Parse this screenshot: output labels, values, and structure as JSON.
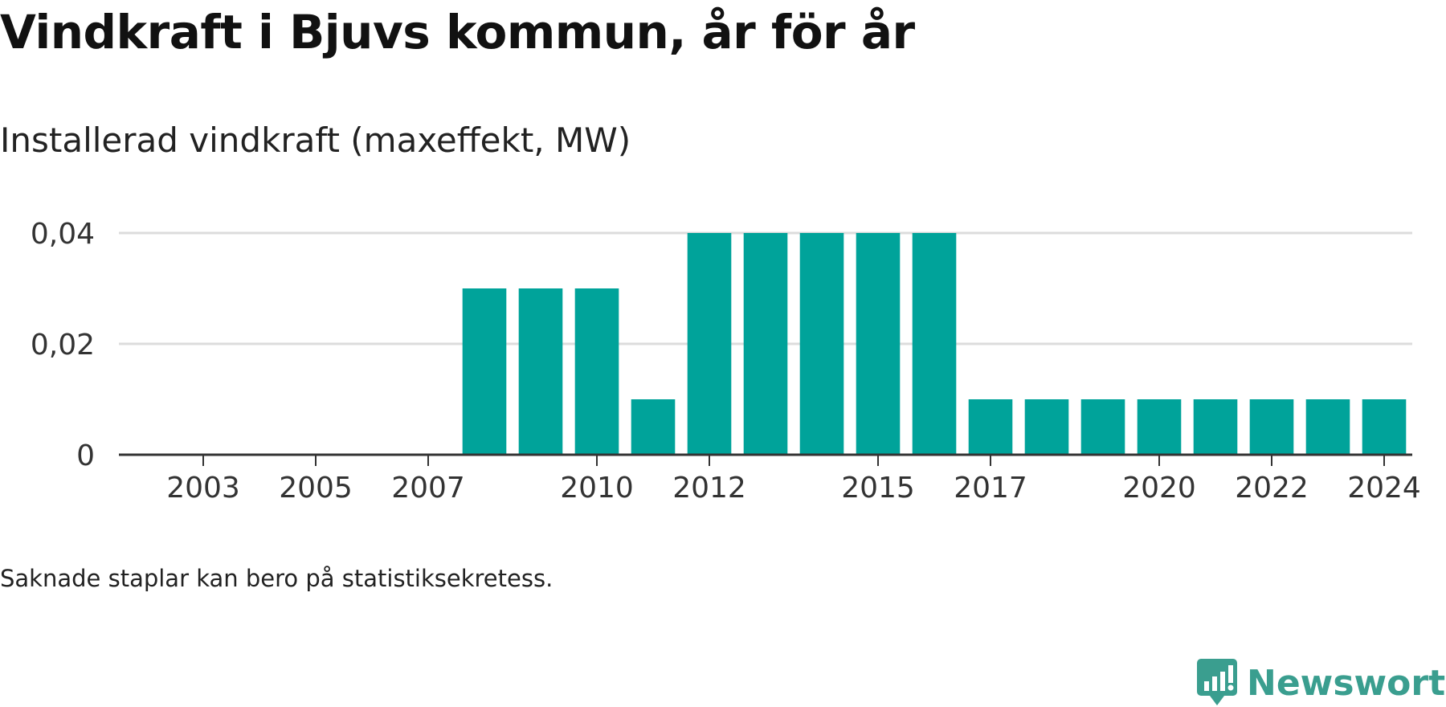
{
  "header": {
    "title": "Vindkraft i Bjuvs kommun, år för år",
    "subtitle": "Installerad vindkraft (maxeffekt, MW)"
  },
  "footer": {
    "note": "Saknade staplar kan bero på statistiksekretess.",
    "brand_name": "Newsworthy",
    "brand_icon": "newsworthy-logo-icon"
  },
  "colors": {
    "bar": "#00a39a",
    "grid": "#dcdcdc",
    "axis": "#333333",
    "brand": "#3a9e8f"
  },
  "chart_data": {
    "type": "bar",
    "categories": [
      "2002",
      "2003",
      "2004",
      "2005",
      "2006",
      "2007",
      "2008",
      "2009",
      "2010",
      "2011",
      "2012",
      "2013",
      "2014",
      "2015",
      "2016",
      "2017",
      "2018",
      "2019",
      "2020",
      "2021",
      "2022",
      "2023",
      "2024"
    ],
    "values": [
      0,
      0,
      0,
      0,
      0,
      0,
      0.03,
      0.03,
      0.03,
      0.01,
      0.04,
      0.04,
      0.04,
      0.04,
      0.04,
      0.01,
      0.01,
      0.01,
      0.01,
      0.01,
      0.01,
      0.01,
      0.01
    ],
    "x_tick_labels": [
      "2003",
      "2005",
      "2007",
      "2010",
      "2012",
      "2015",
      "2017",
      "2020",
      "2022",
      "2024"
    ],
    "y_ticks": [
      0,
      0.02,
      0.04
    ],
    "y_tick_labels": [
      "0",
      "0,02",
      "0,04"
    ],
    "ylim": [
      0,
      0.04
    ],
    "xlabel": "",
    "ylabel": "",
    "grid": true,
    "legend": "none"
  }
}
